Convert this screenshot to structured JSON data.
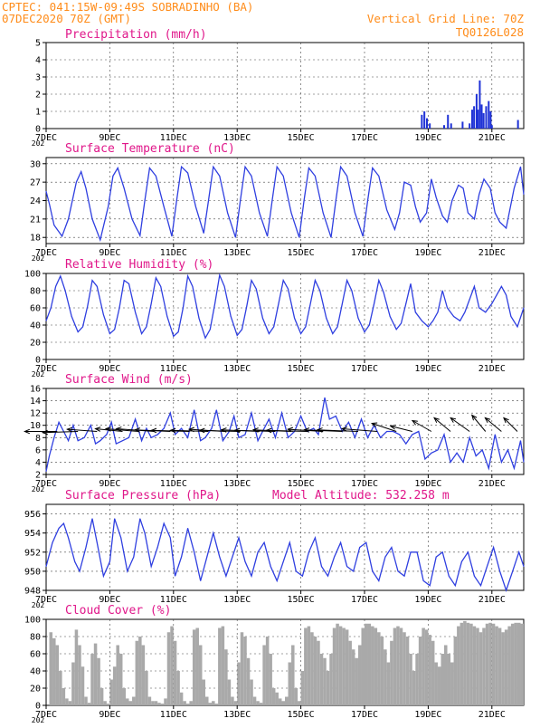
{
  "header": {
    "line1_left": "CPTEC:   041:15W-09:49S   SOBRADINHO (BA)",
    "line2_left": "07DEC2020 70Z (GMT)",
    "line1_right": "Vertical Grid Line: 70Z",
    "line2_right": "TQ0126L028"
  },
  "colors": {
    "line": "#2f3fe0",
    "bar": "#1f32d6",
    "cloud": "#a9a9a9",
    "title": "#e0178a",
    "header": "#ff8c1a",
    "arrow": "#000000"
  },
  "x_axis": {
    "min_day": 7,
    "max_day": 22,
    "tick_days": [
      7,
      9,
      11,
      13,
      15,
      17,
      19,
      21
    ],
    "tick_labels": [
      "7DEC",
      "9DEC",
      "11DEC",
      "13DEC",
      "15DEC",
      "17DEC",
      "19DEC",
      "21DEC"
    ],
    "first_tick_sublabel": "202"
  },
  "chart_data": [
    {
      "id": "precip",
      "type": "bar",
      "title": "Precipitation (mm/h)",
      "ylim": [
        0,
        5
      ],
      "yticks": [
        0,
        1,
        2,
        3,
        4,
        5
      ],
      "x": [
        18.8,
        18.88,
        18.96,
        19.05,
        19.5,
        19.62,
        19.72,
        20.08,
        20.3,
        20.38,
        20.44,
        20.52,
        20.56,
        20.62,
        20.68,
        20.74,
        20.82,
        20.9,
        20.96,
        21.0,
        21.82
      ],
      "values": [
        0.8,
        1.0,
        0.6,
        0.3,
        0.2,
        0.8,
        0.3,
        0.4,
        0.3,
        1.1,
        1.3,
        2.0,
        1.1,
        2.8,
        1.4,
        0.9,
        1.3,
        1.6,
        1.0,
        0.2,
        0.5
      ]
    },
    {
      "id": "temp",
      "type": "line",
      "title": "Surface Temperature (nC)",
      "ylim": [
        17,
        31
      ],
      "yticks": [
        18,
        21,
        24,
        27,
        30
      ],
      "x": [
        7.0,
        7.1,
        7.25,
        7.5,
        7.7,
        7.95,
        8.1,
        8.25,
        8.45,
        8.7,
        8.95,
        9.1,
        9.25,
        9.45,
        9.7,
        9.95,
        10.1,
        10.25,
        10.45,
        10.7,
        10.95,
        11.1,
        11.25,
        11.45,
        11.7,
        11.95,
        12.1,
        12.25,
        12.45,
        12.7,
        12.95,
        13.1,
        13.25,
        13.45,
        13.7,
        13.95,
        14.1,
        14.25,
        14.45,
        14.7,
        14.95,
        15.1,
        15.25,
        15.45,
        15.7,
        15.95,
        16.1,
        16.25,
        16.45,
        16.7,
        16.95,
        17.1,
        17.25,
        17.45,
        17.7,
        17.95,
        18.1,
        18.25,
        18.45,
        18.6,
        18.75,
        18.95,
        19.1,
        19.25,
        19.45,
        19.6,
        19.75,
        19.95,
        20.1,
        20.25,
        20.45,
        20.6,
        20.75,
        20.95,
        21.1,
        21.25,
        21.45,
        21.7,
        21.9,
        22.0
      ],
      "values": [
        25.5,
        23.5,
        20.0,
        18.2,
        21.0,
        27.0,
        28.7,
        26.0,
        21.0,
        17.6,
        23.0,
        28.0,
        29.3,
        26.0,
        21.0,
        18.3,
        24.0,
        29.3,
        28.0,
        23.0,
        18.2,
        24.0,
        29.5,
        28.5,
        23.0,
        18.7,
        24.0,
        29.5,
        28.0,
        22.0,
        18.0,
        24.0,
        29.5,
        28.0,
        22.0,
        18.2,
        24.0,
        29.5,
        28.0,
        22.0,
        18.0,
        24.0,
        29.3,
        28.0,
        22.0,
        18.0,
        24.0,
        29.5,
        28.0,
        22.0,
        18.2,
        24.0,
        29.3,
        28.0,
        22.5,
        19.3,
        22.0,
        27.0,
        26.5,
        23.0,
        20.5,
        22.0,
        27.5,
        24.5,
        21.5,
        20.5,
        24.0,
        26.5,
        26.0,
        22.0,
        21.0,
        25.0,
        27.5,
        26.0,
        22.0,
        20.5,
        19.5,
        26.0,
        29.5,
        25.0
      ]
    },
    {
      "id": "rh",
      "type": "line",
      "title": "Relative Humidity (%)",
      "ylim": [
        0,
        100
      ],
      "yticks": [
        0,
        20,
        40,
        60,
        80,
        100
      ],
      "x": [
        7.0,
        7.15,
        7.3,
        7.45,
        7.6,
        7.8,
        8.0,
        8.15,
        8.3,
        8.45,
        8.6,
        8.8,
        9.0,
        9.15,
        9.3,
        9.45,
        9.6,
        9.8,
        10.0,
        10.15,
        10.3,
        10.45,
        10.6,
        10.8,
        11.0,
        11.15,
        11.3,
        11.45,
        11.6,
        11.8,
        12.0,
        12.15,
        12.3,
        12.45,
        12.6,
        12.8,
        13.0,
        13.15,
        13.3,
        13.45,
        13.6,
        13.8,
        14.0,
        14.15,
        14.3,
        14.45,
        14.6,
        14.8,
        15.0,
        15.15,
        15.3,
        15.45,
        15.6,
        15.8,
        16.0,
        16.15,
        16.3,
        16.45,
        16.6,
        16.8,
        17.0,
        17.15,
        17.3,
        17.45,
        17.6,
        17.8,
        18.0,
        18.15,
        18.3,
        18.45,
        18.6,
        18.8,
        19.0,
        19.15,
        19.3,
        19.45,
        19.6,
        19.8,
        20.0,
        20.15,
        20.3,
        20.45,
        20.6,
        20.8,
        21.0,
        21.15,
        21.3,
        21.45,
        21.6,
        21.8,
        22.0
      ],
      "values": [
        45,
        60,
        85,
        97,
        80,
        50,
        32,
        38,
        62,
        92,
        85,
        52,
        30,
        35,
        60,
        92,
        88,
        55,
        30,
        38,
        65,
        95,
        85,
        50,
        27,
        32,
        60,
        97,
        85,
        48,
        25,
        35,
        65,
        98,
        85,
        50,
        28,
        35,
        62,
        92,
        82,
        48,
        30,
        38,
        65,
        92,
        82,
        48,
        30,
        38,
        65,
        92,
        80,
        48,
        30,
        38,
        65,
        92,
        80,
        48,
        32,
        40,
        65,
        92,
        78,
        50,
        35,
        42,
        65,
        88,
        55,
        45,
        38,
        45,
        55,
        80,
        60,
        50,
        45,
        55,
        70,
        85,
        60,
        55,
        65,
        75,
        85,
        75,
        50,
        38,
        60
      ]
    },
    {
      "id": "wind",
      "type": "line",
      "title": "Surface Wind (m/s)",
      "ylim": [
        2,
        16
      ],
      "yticks": [
        2,
        4,
        6,
        8,
        10,
        12,
        14,
        16
      ],
      "x": [
        7.0,
        7.1,
        7.25,
        7.4,
        7.55,
        7.7,
        7.85,
        8.0,
        8.2,
        8.4,
        8.55,
        8.7,
        8.9,
        9.05,
        9.2,
        9.4,
        9.6,
        9.8,
        10.0,
        10.15,
        10.3,
        10.5,
        10.7,
        10.9,
        11.05,
        11.25,
        11.45,
        11.65,
        11.85,
        12.0,
        12.2,
        12.35,
        12.55,
        12.75,
        12.9,
        13.05,
        13.25,
        13.45,
        13.65,
        13.85,
        14.0,
        14.2,
        14.4,
        14.6,
        14.8,
        15.0,
        15.2,
        15.4,
        15.55,
        15.75,
        15.9,
        16.1,
        16.3,
        16.5,
        16.7,
        16.9,
        17.1,
        17.3,
        17.5,
        17.7,
        17.9,
        18.1,
        18.3,
        18.5,
        18.7,
        18.9,
        19.1,
        19.3,
        19.5,
        19.7,
        19.9,
        20.1,
        20.3,
        20.5,
        20.7,
        20.9,
        21.1,
        21.3,
        21.5,
        21.7,
        21.9,
        22.0
      ],
      "values": [
        2.5,
        5.0,
        8.0,
        10.5,
        9.0,
        7.5,
        10.0,
        7.5,
        8.0,
        10.0,
        7.0,
        7.5,
        8.5,
        10.5,
        7.0,
        7.5,
        8.0,
        11.0,
        7.5,
        9.5,
        8.0,
        8.5,
        9.5,
        12.0,
        8.5,
        9.5,
        8.0,
        12.5,
        7.5,
        8.0,
        9.5,
        12.5,
        7.5,
        9.0,
        11.5,
        8.0,
        8.5,
        12.0,
        7.5,
        9.5,
        11.0,
        8.0,
        12.0,
        8.0,
        9.0,
        11.5,
        9.0,
        9.5,
        8.5,
        14.5,
        11.0,
        11.5,
        9.0,
        10.5,
        8.0,
        11.0,
        8.0,
        10.0,
        8.0,
        9.0,
        9.0,
        8.5,
        7.0,
        8.5,
        9.0,
        4.5,
        5.5,
        6.0,
        8.5,
        4.0,
        5.5,
        4.0,
        8.0,
        5.0,
        6.0,
        3.0,
        8.5,
        4.0,
        6.0,
        3.0,
        7.5,
        4.0
      ],
      "arrows": [
        {
          "day": 7.35,
          "u": 6.0,
          "v": 0.0
        },
        {
          "day": 8.0,
          "u": 6.5,
          "v": -0.2
        },
        {
          "day": 8.6,
          "u": 5.5,
          "v": 0.4
        },
        {
          "day": 9.4,
          "u": 5.0,
          "v": 0.5
        },
        {
          "day": 9.9,
          "u": 6.0,
          "v": 0.5
        },
        {
          "day": 10.4,
          "u": 7.0,
          "v": 0.5
        },
        {
          "day": 10.9,
          "u": 6.5,
          "v": 0.3
        },
        {
          "day": 11.5,
          "u": 7.0,
          "v": 0.2
        },
        {
          "day": 12.1,
          "u": 7.0,
          "v": 0.2
        },
        {
          "day": 12.6,
          "u": 6.5,
          "v": 0.4
        },
        {
          "day": 13.1,
          "u": 7.5,
          "v": 0.2
        },
        {
          "day": 13.7,
          "u": 7.0,
          "v": 0.3
        },
        {
          "day": 14.2,
          "u": 7.5,
          "v": 0.2
        },
        {
          "day": 14.7,
          "u": 7.0,
          "v": 0.3
        },
        {
          "day": 15.2,
          "u": 7.5,
          "v": 0.2
        },
        {
          "day": 15.7,
          "u": 6.5,
          "v": 0.4
        },
        {
          "day": 16.3,
          "u": 7.0,
          "v": 0.3
        },
        {
          "day": 16.8,
          "u": 7.5,
          "v": 0.3
        },
        {
          "day": 17.4,
          "u": 6.5,
          "v": 0.5
        },
        {
          "day": 18.0,
          "u": 4.5,
          "v": 1.5
        },
        {
          "day": 18.5,
          "u": 4.0,
          "v": 1.0
        },
        {
          "day": 19.1,
          "u": 3.5,
          "v": 2.0
        },
        {
          "day": 19.7,
          "u": 3.0,
          "v": 2.5
        },
        {
          "day": 20.3,
          "u": 3.5,
          "v": 2.5
        },
        {
          "day": 20.8,
          "u": 2.5,
          "v": 3.0
        },
        {
          "day": 21.3,
          "u": 3.0,
          "v": 2.5
        },
        {
          "day": 21.8,
          "u": 2.5,
          "v": 2.5
        }
      ]
    },
    {
      "id": "pres",
      "type": "line",
      "title": "Surface Pressure (hPa)",
      "subtitle": "Model Altitude: 532.258 m",
      "ylim": [
        948,
        957
      ],
      "yticks": [
        948,
        950,
        952,
        954,
        956
      ],
      "x": [
        7.0,
        7.2,
        7.4,
        7.55,
        7.7,
        7.9,
        8.05,
        8.25,
        8.45,
        8.6,
        8.8,
        9.0,
        9.15,
        9.35,
        9.55,
        9.75,
        9.95,
        10.1,
        10.3,
        10.5,
        10.7,
        10.9,
        11.05,
        11.25,
        11.45,
        11.65,
        11.85,
        12.05,
        12.25,
        12.45,
        12.65,
        12.85,
        13.05,
        13.25,
        13.45,
        13.65,
        13.85,
        14.05,
        14.25,
        14.45,
        14.65,
        14.85,
        15.05,
        15.25,
        15.45,
        15.65,
        15.85,
        16.05,
        16.25,
        16.45,
        16.65,
        16.85,
        17.05,
        17.25,
        17.45,
        17.65,
        17.85,
        18.05,
        18.25,
        18.45,
        18.65,
        18.85,
        19.05,
        19.25,
        19.45,
        19.65,
        19.85,
        20.05,
        20.25,
        20.45,
        20.65,
        20.85,
        21.05,
        21.25,
        21.45,
        21.65,
        21.85,
        22.0
      ],
      "values": [
        950.5,
        953.0,
        954.5,
        955.0,
        953.5,
        951.0,
        950.0,
        952.5,
        955.5,
        953.0,
        949.5,
        951.0,
        955.5,
        953.5,
        950.0,
        951.5,
        955.5,
        954.0,
        950.5,
        952.5,
        955.0,
        953.5,
        949.5,
        951.5,
        954.5,
        952.0,
        949.0,
        951.5,
        954.0,
        951.5,
        949.5,
        951.5,
        953.5,
        951.0,
        949.5,
        952.0,
        953.0,
        950.5,
        949.0,
        951.0,
        953.0,
        950.0,
        949.5,
        952.0,
        953.5,
        950.5,
        949.5,
        951.5,
        953.0,
        950.5,
        950.0,
        952.5,
        953.0,
        950.0,
        949.0,
        951.5,
        952.5,
        950.0,
        949.5,
        952.0,
        952.0,
        949.0,
        948.5,
        951.5,
        952.0,
        949.5,
        948.5,
        951.0,
        952.0,
        949.5,
        948.5,
        950.5,
        952.5,
        950.0,
        948.0,
        950.0,
        952.0,
        950.5
      ]
    },
    {
      "id": "cloud",
      "type": "bar",
      "title": "Cloud Cover (%)",
      "ylim": [
        0,
        100
      ],
      "yticks": [
        0,
        20,
        40,
        60,
        80,
        100
      ],
      "x": [
        7.0,
        7.1,
        7.2,
        7.3,
        7.4,
        7.5,
        7.6,
        7.7,
        7.8,
        7.9,
        8.0,
        8.1,
        8.2,
        8.3,
        8.4,
        8.5,
        8.6,
        8.7,
        8.8,
        8.9,
        9.0,
        9.1,
        9.2,
        9.3,
        9.4,
        9.5,
        9.6,
        9.7,
        9.8,
        9.9,
        10.0,
        10.1,
        10.2,
        10.3,
        10.4,
        10.5,
        10.6,
        10.7,
        10.8,
        10.9,
        11.0,
        11.1,
        11.2,
        11.3,
        11.4,
        11.5,
        11.6,
        11.7,
        11.8,
        11.9,
        12.0,
        12.1,
        12.2,
        12.3,
        12.4,
        12.5,
        12.6,
        12.7,
        12.8,
        12.9,
        13.0,
        13.1,
        13.2,
        13.3,
        13.4,
        13.5,
        13.6,
        13.7,
        13.8,
        13.9,
        14.0,
        14.1,
        14.2,
        14.3,
        14.4,
        14.5,
        14.6,
        14.7,
        14.8,
        14.9,
        15.0,
        15.1,
        15.2,
        15.3,
        15.4,
        15.5,
        15.6,
        15.7,
        15.8,
        15.9,
        16.0,
        16.1,
        16.2,
        16.3,
        16.4,
        16.5,
        16.6,
        16.7,
        16.8,
        16.9,
        17.0,
        17.1,
        17.2,
        17.3,
        17.4,
        17.5,
        17.6,
        17.7,
        17.8,
        17.9,
        18.0,
        18.1,
        18.2,
        18.3,
        18.4,
        18.5,
        18.6,
        18.7,
        18.8,
        18.9,
        19.0,
        19.1,
        19.2,
        19.3,
        19.4,
        19.5,
        19.6,
        19.7,
        19.8,
        19.9,
        20.0,
        20.1,
        20.2,
        20.3,
        20.4,
        20.5,
        20.6,
        20.7,
        20.8,
        20.9,
        21.0,
        21.1,
        21.2,
        21.3,
        21.4,
        21.5,
        21.6,
        21.7,
        21.8,
        21.9
      ],
      "values": [
        0,
        85,
        78,
        70,
        40,
        20,
        8,
        5,
        50,
        88,
        70,
        45,
        10,
        3,
        60,
        72,
        55,
        20,
        5,
        2,
        30,
        45,
        70,
        60,
        20,
        8,
        5,
        10,
        75,
        80,
        70,
        40,
        10,
        5,
        5,
        3,
        2,
        8,
        85,
        92,
        75,
        40,
        15,
        5,
        2,
        5,
        88,
        90,
        70,
        30,
        10,
        3,
        5,
        2,
        90,
        92,
        65,
        30,
        10,
        5,
        50,
        85,
        80,
        55,
        30,
        10,
        5,
        3,
        70,
        80,
        60,
        20,
        15,
        8,
        5,
        10,
        50,
        70,
        20,
        5,
        40,
        90,
        92,
        85,
        80,
        75,
        60,
        55,
        40,
        60,
        90,
        95,
        92,
        90,
        88,
        75,
        65,
        55,
        70,
        90,
        95,
        95,
        92,
        90,
        85,
        80,
        65,
        50,
        75,
        90,
        92,
        90,
        85,
        80,
        60,
        40,
        60,
        80,
        90,
        88,
        82,
        75,
        50,
        45,
        60,
        70,
        60,
        50,
        80,
        92,
        96,
        98,
        96,
        95,
        92,
        90,
        85,
        90,
        95,
        96,
        95,
        92,
        90,
        85,
        88,
        92,
        95,
        96,
        96,
        95
      ]
    }
  ]
}
